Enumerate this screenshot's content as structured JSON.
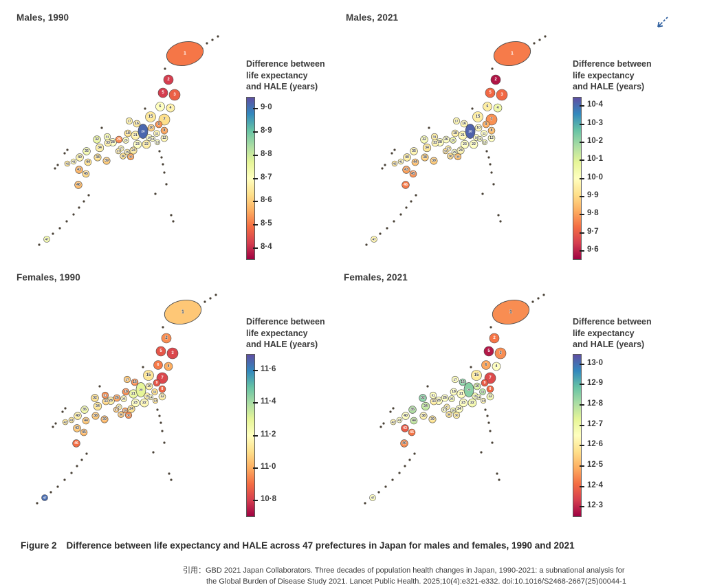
{
  "page": {
    "caption_label": "Figure 2",
    "caption_text": "Difference between life expectancy and HALE across 47 prefectures in Japan for males and females, 1990 and 2021",
    "citation_line1": "引用：GBD 2021 Japan Collaborators. Three decades of population health changes in Japan, 1990-2021: a subnational analysis for",
    "citation_line2": "the Global Burden of Disease Study 2021. Lancet Public Health. 2025;10(4):e321-e332. doi:10.1016/S2468-2667(25)00044-1",
    "corner_icon": "collapse-arrow"
  },
  "legend_title_lines": [
    "Difference between",
    "life expectancy",
    "and HALE (years)"
  ],
  "colormap": {
    "stops_low_to_high": [
      "#9e0142",
      "#d53e4f",
      "#f46d43",
      "#fdae61",
      "#fee08b",
      "#ffffbf",
      "#e6f598",
      "#abdda4",
      "#66c2a5",
      "#3288bd",
      "#5e4fa2"
    ]
  },
  "prefecture_ids": [
    1,
    2,
    3,
    4,
    5,
    6,
    7,
    8,
    9,
    10,
    11,
    12,
    13,
    14,
    15,
    16,
    17,
    18,
    19,
    20,
    21,
    22,
    23,
    24,
    25,
    26,
    27,
    28,
    29,
    30,
    31,
    32,
    33,
    34,
    35,
    36,
    37,
    38,
    39,
    40,
    41,
    42,
    43,
    44,
    45,
    46,
    47
  ],
  "chart_data": [
    {
      "type": "choropleth-map",
      "title": "Males, 1990",
      "legend_title": "Difference between life expectancy and HALE (years)",
      "unit": "years",
      "domain": [
        8.35,
        9.05
      ],
      "ticks": [
        9.0,
        8.9,
        8.8,
        8.7,
        8.6,
        8.5,
        8.4
      ],
      "values": [
        8.5,
        8.42,
        8.47,
        8.67,
        8.42,
        8.7,
        8.63,
        8.55,
        8.53,
        8.6,
        8.68,
        8.68,
        8.7,
        8.7,
        8.65,
        8.65,
        8.67,
        8.63,
        8.7,
        9.02,
        8.67,
        8.66,
        8.7,
        8.65,
        8.7,
        8.52,
        8.68,
        8.7,
        8.66,
        8.55,
        8.72,
        8.75,
        8.67,
        8.67,
        8.73,
        8.63,
        8.65,
        8.63,
        8.6,
        8.68,
        8.68,
        8.64,
        8.57,
        8.63,
        8.62,
        8.58,
        8.73
      ]
    },
    {
      "type": "choropleth-map",
      "title": "Males, 2021",
      "legend_title": "Difference between life expectancy and HALE (years)",
      "unit": "years",
      "domain": [
        9.55,
        10.45
      ],
      "ticks": [
        10.4,
        10.3,
        10.2,
        10.1,
        10.0,
        9.9,
        9.8,
        9.7,
        9.6
      ],
      "values": [
        9.75,
        9.58,
        9.72,
        10.05,
        9.72,
        9.95,
        9.78,
        9.85,
        9.82,
        9.98,
        10.0,
        10.0,
        10.02,
        10.02,
        9.95,
        9.98,
        9.98,
        9.95,
        10.0,
        10.42,
        9.98,
        10.0,
        10.0,
        9.97,
        10.05,
        10.0,
        9.95,
        10.0,
        10.0,
        9.85,
        9.95,
        10.02,
        9.97,
        9.93,
        9.97,
        9.9,
        9.9,
        9.88,
        9.87,
        9.95,
        9.97,
        9.92,
        9.8,
        9.85,
        9.78,
        9.75,
        9.97
      ]
    },
    {
      "type": "choropleth-map",
      "title": "Females, 1990",
      "legend_title": "Difference between life expectancy and HALE (years)",
      "unit": "years",
      "domain": [
        10.7,
        11.7
      ],
      "ticks": [
        11.6,
        11.4,
        11.2,
        11.0,
        10.8
      ],
      "values": [
        11.05,
        10.95,
        10.82,
        11.0,
        10.85,
        10.92,
        10.82,
        10.88,
        10.85,
        11.15,
        11.1,
        11.15,
        11.1,
        11.18,
        11.12,
        10.95,
        11.05,
        10.95,
        11.15,
        11.3,
        11.28,
        11.18,
        11.2,
        11.1,
        11.18,
        10.98,
        11.15,
        11.15,
        10.98,
        10.95,
        10.95,
        11.1,
        11.08,
        11.12,
        11.25,
        11.05,
        11.05,
        11.05,
        11.02,
        11.15,
        11.12,
        11.12,
        11.05,
        11.05,
        11.02,
        10.9,
        11.65
      ]
    },
    {
      "type": "choropleth-map",
      "title": "Females, 2021",
      "legend_title": "Difference between life expectancy and HALE (years)",
      "unit": "years",
      "domain": [
        12.25,
        13.05
      ],
      "ticks": [
        13.0,
        12.9,
        12.8,
        12.7,
        12.6,
        12.5,
        12.4,
        12.3
      ],
      "values": [
        12.45,
        12.42,
        12.45,
        12.65,
        12.28,
        12.48,
        12.35,
        12.4,
        12.38,
        12.75,
        12.8,
        12.68,
        12.62,
        12.68,
        12.6,
        12.85,
        12.65,
        12.65,
        12.68,
        12.85,
        12.65,
        12.68,
        12.65,
        12.65,
        12.68,
        12.65,
        12.6,
        12.65,
        12.68,
        12.6,
        12.65,
        12.85,
        12.6,
        12.78,
        12.8,
        12.58,
        12.65,
        12.62,
        12.58,
        12.65,
        12.65,
        12.62,
        12.38,
        12.78,
        12.42,
        12.45,
        12.65
      ]
    }
  ]
}
